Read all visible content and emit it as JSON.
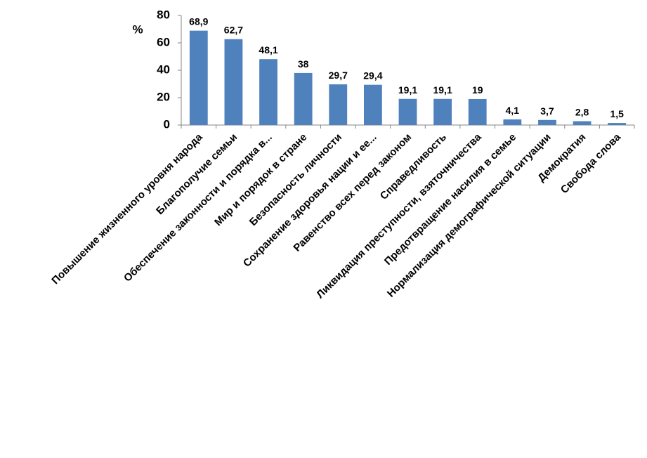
{
  "chart_data": {
    "type": "bar",
    "y_label": "%",
    "categories": [
      "Повышение жизненного уровня народа",
      "Благополучие семьи",
      "Обеспечение законности и порядка в...",
      "Мир и порядок в стране",
      "Безопасность личности",
      "Сохранение здоровья нации и ее...",
      "Равенство всех перед законом",
      "Справедливость",
      "Ликвидация преступности, взяточничества",
      "Предотвращение насилия в семье",
      "Нормализация демографической ситуации",
      "Демократия",
      "Свобода слова"
    ],
    "values": [
      68.9,
      62.7,
      48.1,
      38,
      29.7,
      29.4,
      19.1,
      19.1,
      19,
      4.1,
      3.7,
      2.8,
      1.5
    ],
    "value_labels": [
      "68,9",
      "62,7",
      "48,1",
      "38",
      "29,7",
      "29,4",
      "19,1",
      "19,1",
      "19",
      "4,1",
      "3,7",
      "2,8",
      "1,5"
    ],
    "color": "#4f81bd",
    "ylim": [
      0,
      80
    ],
    "yticks": [
      0,
      20,
      40,
      60,
      80
    ],
    "grid": false
  }
}
